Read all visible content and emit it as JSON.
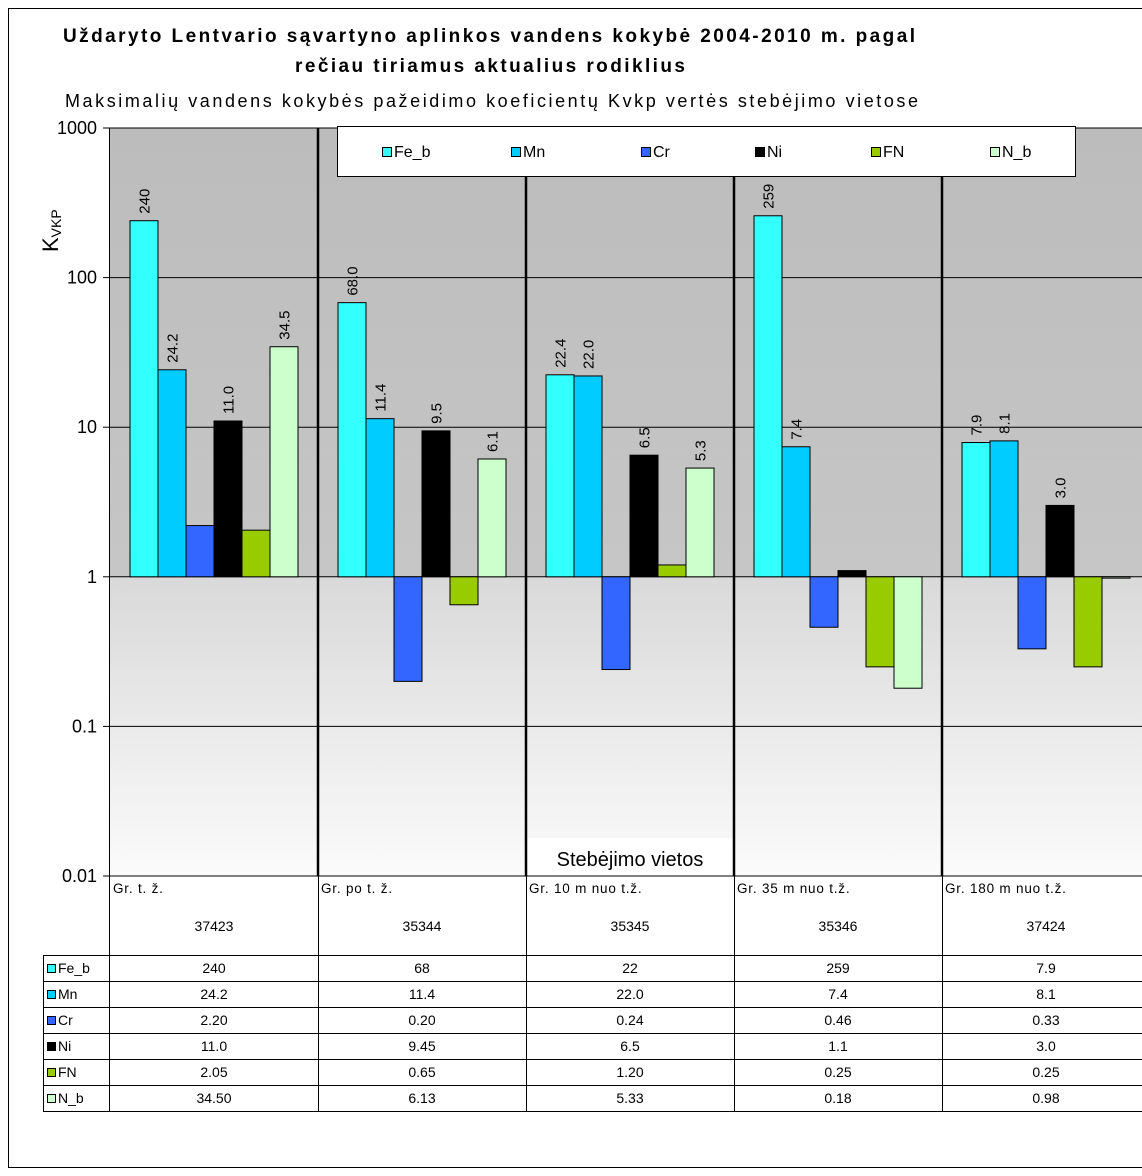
{
  "chart_data": {
    "type": "bar",
    "title": [
      "Uždaryto Lentvario sąvartyno aplinkos vandens kokybė 2004-2010 m. pagal",
      "rečiau tiriamus aktualius rodiklius"
    ],
    "subtitle": "Maksimalių vandens kokybės pažeidimo koeficientų Kvkp vertės stebėjimo vietose",
    "xlabel": "Stebėjimo vietos",
    "ylabel_main": "K",
    "ylabel_sub": "VKP",
    "yscale": "log",
    "ylim": [
      0.01,
      1000
    ],
    "yticks": [
      "1000",
      "100",
      "10",
      "1",
      "0.1",
      "0.01"
    ],
    "grid": true,
    "legend_position": "top",
    "categories": [
      "Gr. t. ž.",
      "Gr. po t. ž.",
      "Gr. 10 m nuo t.ž.",
      "Gr. 35 m nuo t.ž.",
      "Gr. 180 m nuo t.ž."
    ],
    "category_codes": [
      "37423",
      "35344",
      "35345",
      "35346",
      "37424"
    ],
    "series": [
      {
        "name": "Fe_b",
        "color": "#33ffff",
        "values": [
          240,
          68,
          22.4,
          259,
          7.9
        ],
        "labels": [
          "240",
          "68.0",
          "22.4",
          "259",
          "7.9"
        ],
        "table_values": [
          "240",
          "68",
          "22",
          "259",
          "7.9"
        ]
      },
      {
        "name": "Mn",
        "color": "#00ccff",
        "values": [
          24.2,
          11.4,
          22.0,
          7.4,
          8.1
        ],
        "labels": [
          "24.2",
          "11.4",
          "22.0",
          "7.4",
          "8.1"
        ],
        "table_values": [
          "24.2",
          "11.4",
          "22.0",
          "7.4",
          "8.1"
        ]
      },
      {
        "name": "Cr",
        "color": "#3366ff",
        "values": [
          2.2,
          0.2,
          0.24,
          0.46,
          0.33
        ],
        "labels": [
          null,
          null,
          null,
          null,
          null
        ],
        "table_values": [
          "2.20",
          "0.20",
          "0.24",
          "0.46",
          "0.33"
        ]
      },
      {
        "name": "Ni",
        "color": "#000000",
        "values": [
          11.0,
          9.45,
          6.5,
          1.1,
          3.0
        ],
        "labels": [
          "11.0",
          "9.5",
          "6.5",
          null,
          "3.0"
        ],
        "table_values": [
          "11.0",
          "9.45",
          "6.5",
          "1.1",
          "3.0"
        ]
      },
      {
        "name": "FN",
        "color": "#99cc00",
        "values": [
          2.05,
          0.65,
          1.2,
          0.25,
          0.25
        ],
        "labels": [
          null,
          null,
          null,
          null,
          null
        ],
        "table_values": [
          "2.05",
          "0.65",
          "1.20",
          "0.25",
          "0.25"
        ]
      },
      {
        "name": "N_b",
        "color": "#ccffcc",
        "values": [
          34.5,
          6.13,
          5.33,
          0.18,
          0.98
        ],
        "labels": [
          "34.5",
          "6.1",
          "5.3",
          null,
          null
        ],
        "table_values": [
          "34.50",
          "6.13",
          "5.33",
          "0.18",
          "0.98"
        ]
      }
    ]
  }
}
